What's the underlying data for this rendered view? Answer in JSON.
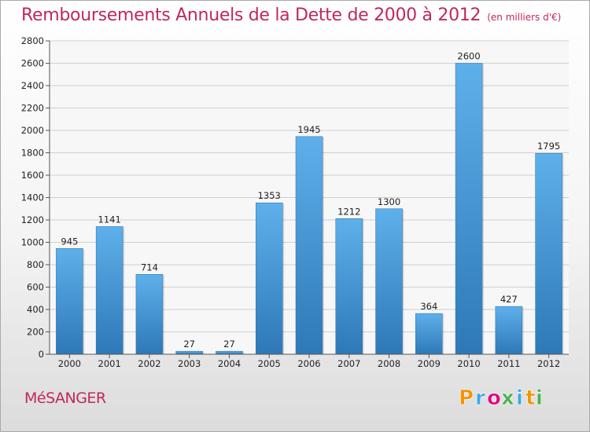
{
  "header": {
    "title": "Remboursements Annuels de la Dette de 2000 à 2012",
    "unit": "(en milliers d'€)"
  },
  "footer": {
    "city": "MéSANGER",
    "brand_letters": [
      "P",
      "r",
      "o",
      "x",
      "i",
      "t",
      "i"
    ],
    "brand_colors": [
      "#f29400",
      "#3aa8e0",
      "#e2007a",
      "#4caf50",
      "#3aa8e0",
      "#f29400",
      "#4caf50"
    ]
  },
  "colors": {
    "bar_top": "#5eb0ea",
    "bar_bottom": "#2e78b8",
    "accent": "#c0285a",
    "grid": "#cfcfcf"
  },
  "chart_data": {
    "type": "bar",
    "title": "Remboursements Annuels de la Dette de 2000 à 2012",
    "subtitle": "(en milliers d'€)",
    "xlabel": "",
    "ylabel": "",
    "categories": [
      "2000",
      "2001",
      "2002",
      "2003",
      "2004",
      "2005",
      "2006",
      "2007",
      "2008",
      "2009",
      "2010",
      "2011",
      "2012"
    ],
    "values": [
      945,
      1141,
      714,
      27,
      27,
      1353,
      1945,
      1212,
      1300,
      364,
      2600,
      427,
      1795
    ],
    "data_labels": [
      "945",
      "1141",
      "714",
      "27",
      "27",
      "1353",
      "1945",
      "1212",
      "1300",
      "364",
      "2600",
      "427",
      "1795"
    ],
    "ylim": [
      0,
      2800
    ],
    "yticks": [
      "0",
      "200",
      "400",
      "600",
      "800",
      "1000",
      "1200",
      "1400",
      "1600",
      "1800",
      "2000",
      "2200",
      "2400",
      "2600",
      "2800"
    ],
    "grid": true,
    "legend": "none"
  }
}
